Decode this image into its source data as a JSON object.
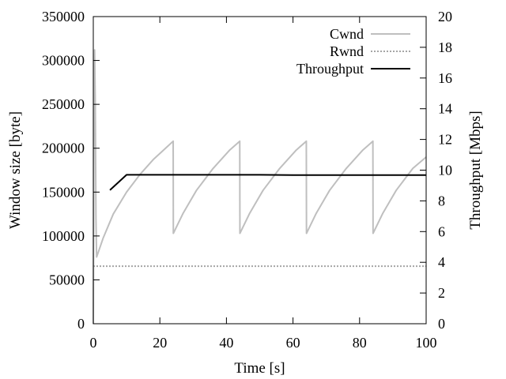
{
  "chart_data": {
    "type": "line",
    "title": "",
    "xlabel": "Time [s]",
    "ylabel": "Window size [byte]",
    "y2label": "Throughput [Mbps]",
    "xlim": [
      0,
      100
    ],
    "ylim": [
      0,
      350000
    ],
    "y2lim": [
      0,
      20
    ],
    "x_ticks": [
      "0",
      "20",
      "40",
      "60",
      "80",
      "100"
    ],
    "y_ticks": [
      "0",
      "50000",
      "100000",
      "150000",
      "200000",
      "250000",
      "300000",
      "350000"
    ],
    "y2_ticks": [
      "0",
      "2",
      "4",
      "6",
      "8",
      "10",
      "12",
      "14",
      "16",
      "18",
      "20"
    ],
    "grid": false,
    "legend_position": "top-right",
    "series": [
      {
        "name": "Cwnd",
        "axis": "left",
        "color": "#bfbfbf",
        "style": "solid",
        "points": [
          [
            0,
            0
          ],
          [
            0.2,
            240000
          ],
          [
            0.4,
            312000
          ],
          [
            0.6,
            250000
          ],
          [
            0.8,
            120000
          ],
          [
            1,
            76000
          ],
          [
            3,
            98000
          ],
          [
            6,
            125000
          ],
          [
            10,
            150000
          ],
          [
            14,
            170000
          ],
          [
            18,
            187000
          ],
          [
            22,
            201000
          ],
          [
            24,
            208000
          ],
          [
            24.05,
            103000
          ],
          [
            27,
            126000
          ],
          [
            31,
            152000
          ],
          [
            36,
            177000
          ],
          [
            41,
            198000
          ],
          [
            44,
            208000
          ],
          [
            44.05,
            103000
          ],
          [
            47,
            126000
          ],
          [
            51,
            152000
          ],
          [
            56,
            177000
          ],
          [
            61,
            198000
          ],
          [
            64,
            208000
          ],
          [
            64.05,
            103000
          ],
          [
            67,
            126000
          ],
          [
            71,
            152000
          ],
          [
            76,
            177000
          ],
          [
            81,
            198000
          ],
          [
            84,
            208000
          ],
          [
            84.05,
            103000
          ],
          [
            87,
            126000
          ],
          [
            91,
            152000
          ],
          [
            96,
            177000
          ],
          [
            100,
            190000
          ]
        ]
      },
      {
        "name": "Rwnd",
        "axis": "left",
        "color": "#a6a6a6",
        "style": "dotted",
        "points": [
          [
            0,
            65535
          ],
          [
            100,
            65535
          ]
        ]
      },
      {
        "name": "Throughput",
        "axis": "right",
        "color": "#000000",
        "style": "solid",
        "points": [
          [
            5,
            8.7
          ],
          [
            10,
            9.7
          ],
          [
            50,
            9.7
          ],
          [
            60,
            9.68
          ],
          [
            100,
            9.68
          ]
        ]
      }
    ]
  }
}
